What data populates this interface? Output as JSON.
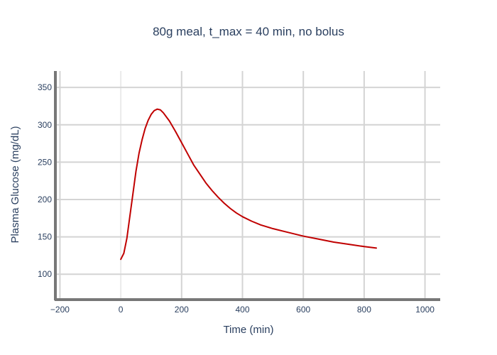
{
  "chart_data": {
    "type": "line",
    "title": "80g meal, t_max = 40 min, no bolus",
    "xlabel": "Time (min)",
    "ylabel": "Plasma Glucose (mg/dL)",
    "xlim": [
      -215,
      1050
    ],
    "ylim": [
      66,
      372
    ],
    "xticks": [
      -200,
      0,
      200,
      400,
      600,
      800,
      1000
    ],
    "xtick_labels": [
      "−200",
      "0",
      "200",
      "400",
      "600",
      "800",
      "1000"
    ],
    "yticks": [
      100,
      150,
      200,
      250,
      300,
      350
    ],
    "ytick_labels": [
      "100",
      "150",
      "200",
      "250",
      "300",
      "350"
    ],
    "grid": true,
    "legend": "none",
    "series": [
      {
        "color": "#c00000",
        "x": [
          0,
          10,
          20,
          30,
          40,
          50,
          60,
          70,
          80,
          90,
          100,
          110,
          120,
          130,
          140,
          160,
          180,
          200,
          220,
          240,
          260,
          280,
          300,
          320,
          340,
          360,
          380,
          400,
          430,
          460,
          500,
          550,
          600,
          650,
          700,
          750,
          800,
          840
        ],
        "y": [
          120,
          128,
          148,
          178,
          208,
          238,
          262,
          280,
          295,
          306,
          314,
          319,
          321,
          320,
          316,
          305,
          291,
          276,
          261,
          246,
          234,
          222,
          212,
          203,
          195,
          188,
          182,
          177,
          171,
          166,
          161,
          156,
          151,
          147,
          143,
          140,
          137,
          135
        ]
      }
    ]
  }
}
